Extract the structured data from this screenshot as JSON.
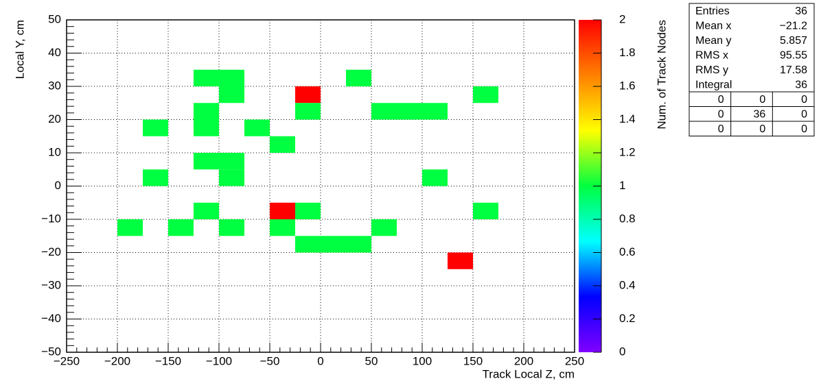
{
  "chart_data": {
    "type": "heatmap",
    "x_label": "Track Local Z, cm",
    "y_label": "Local Y, cm",
    "z_label": "Num. of Track Nodes",
    "xlim": [
      -250,
      250
    ],
    "ylim": [
      -50,
      50
    ],
    "zlim": [
      0,
      2
    ],
    "xticks": [
      {
        "value": -250,
        "label": "−250"
      },
      {
        "value": -200,
        "label": "−200"
      },
      {
        "value": -150,
        "label": "−150"
      },
      {
        "value": -100,
        "label": "−100"
      },
      {
        "value": -50,
        "label": "−50"
      },
      0,
      50,
      100,
      150,
      200,
      250
    ],
    "yticks": [
      {
        "value": -50,
        "label": "−50"
      },
      {
        "value": -40,
        "label": "−40"
      },
      {
        "value": -30,
        "label": "−30"
      },
      {
        "value": -20,
        "label": "−20"
      },
      {
        "value": -10,
        "label": "−10"
      },
      0,
      10,
      20,
      30,
      40,
      50
    ],
    "zticks": [
      0,
      0.2,
      0.4,
      0.6,
      0.8,
      1,
      1.2,
      1.4,
      1.6,
      1.8,
      2
    ],
    "grid": true,
    "palette": [
      "#8000ff",
      "#0000ff",
      "#00ffff",
      "#00ff40",
      "#ffff00",
      "#ff8000",
      "#ff0000"
    ],
    "cells": [
      {
        "x": [
          -125,
          -100
        ],
        "y": [
          30,
          35
        ],
        "value": 1
      },
      {
        "x": [
          -100,
          -75
        ],
        "y": [
          30,
          35
        ],
        "value": 1
      },
      {
        "x": [
          25,
          50
        ],
        "y": [
          30,
          35
        ],
        "value": 1
      },
      {
        "x": [
          -100,
          -75
        ],
        "y": [
          25,
          30
        ],
        "value": 1
      },
      {
        "x": [
          -25,
          0
        ],
        "y": [
          25,
          30
        ],
        "value": 2
      },
      {
        "x": [
          150,
          175
        ],
        "y": [
          25,
          30
        ],
        "value": 1
      },
      {
        "x": [
          -125,
          -100
        ],
        "y": [
          20,
          25
        ],
        "value": 1
      },
      {
        "x": [
          -25,
          0
        ],
        "y": [
          20,
          25
        ],
        "value": 1
      },
      {
        "x": [
          50,
          75
        ],
        "y": [
          20,
          25
        ],
        "value": 1
      },
      {
        "x": [
          75,
          100
        ],
        "y": [
          20,
          25
        ],
        "value": 1
      },
      {
        "x": [
          100,
          125
        ],
        "y": [
          20,
          25
        ],
        "value": 1
      },
      {
        "x": [
          -175,
          -150
        ],
        "y": [
          15,
          20
        ],
        "value": 1
      },
      {
        "x": [
          -125,
          -100
        ],
        "y": [
          15,
          20
        ],
        "value": 1
      },
      {
        "x": [
          -75,
          -50
        ],
        "y": [
          15,
          20
        ],
        "value": 1
      },
      {
        "x": [
          -50,
          -25
        ],
        "y": [
          10,
          15
        ],
        "value": 1
      },
      {
        "x": [
          -125,
          -100
        ],
        "y": [
          5,
          10
        ],
        "value": 1
      },
      {
        "x": [
          -100,
          -75
        ],
        "y": [
          5,
          10
        ],
        "value": 1
      },
      {
        "x": [
          -175,
          -150
        ],
        "y": [
          0,
          5
        ],
        "value": 1
      },
      {
        "x": [
          -100,
          -75
        ],
        "y": [
          0,
          5
        ],
        "value": 1
      },
      {
        "x": [
          100,
          125
        ],
        "y": [
          0,
          5
        ],
        "value": 1
      },
      {
        "x": [
          -125,
          -100
        ],
        "y": [
          -10,
          -5
        ],
        "value": 1
      },
      {
        "x": [
          -50,
          -25
        ],
        "y": [
          -10,
          -5
        ],
        "value": 2
      },
      {
        "x": [
          -25,
          0
        ],
        "y": [
          -10,
          -5
        ],
        "value": 1
      },
      {
        "x": [
          150,
          175
        ],
        "y": [
          -10,
          -5
        ],
        "value": 1
      },
      {
        "x": [
          -200,
          -175
        ],
        "y": [
          -15,
          -10
        ],
        "value": 1
      },
      {
        "x": [
          -150,
          -125
        ],
        "y": [
          -15,
          -10
        ],
        "value": 1
      },
      {
        "x": [
          -100,
          -75
        ],
        "y": [
          -15,
          -10
        ],
        "value": 1
      },
      {
        "x": [
          -50,
          -25
        ],
        "y": [
          -15,
          -10
        ],
        "value": 1
      },
      {
        "x": [
          50,
          75
        ],
        "y": [
          -15,
          -10
        ],
        "value": 1
      },
      {
        "x": [
          -25,
          0
        ],
        "y": [
          -20,
          -15
        ],
        "value": 1
      },
      {
        "x": [
          0,
          25
        ],
        "y": [
          -20,
          -15
        ],
        "value": 1
      },
      {
        "x": [
          25,
          50
        ],
        "y": [
          -20,
          -15
        ],
        "value": 1
      },
      {
        "x": [
          125,
          150
        ],
        "y": [
          -25,
          -20
        ],
        "value": 2
      }
    ],
    "stats": {
      "rows": [
        {
          "name": "Entries",
          "value": 36
        },
        {
          "name": "Mean x",
          "value": {
            "value": -21.2,
            "label": "−21.2"
          }
        },
        {
          "name": "Mean y",
          "value": 5.857
        },
        {
          "name": "RMS x",
          "value": 95.55
        },
        {
          "name": "RMS y",
          "value": 17.58
        },
        {
          "name": "Integral",
          "value": 36
        }
      ],
      "overflow": [
        [
          0,
          0,
          0
        ],
        [
          0,
          36,
          0
        ],
        [
          0,
          0,
          0
        ]
      ]
    }
  }
}
